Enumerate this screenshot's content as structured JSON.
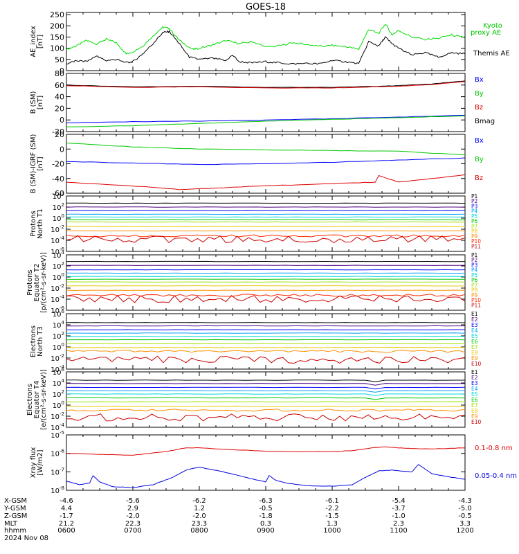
{
  "title": "GOES-18",
  "chart_data": {
    "type": "line",
    "x_tick_labels": [
      "0600",
      "0700",
      "0800",
      "0900",
      "1000",
      "1100",
      "1200"
    ],
    "x_range_hours": [
      6,
      12
    ],
    "panels": [
      {
        "id": "ae",
        "ylabel": [
          "AE_index",
          "[nT]"
        ],
        "scale": "linear",
        "ylim": [
          0,
          260
        ],
        "yticks": [
          0,
          50,
          100,
          150,
          200,
          250
        ],
        "legend": [
          {
            "lines": [
              "Kyoto",
              "proxy AE"
            ],
            "color": "#00c800"
          },
          {
            "lines": [
              "Themis AE"
            ],
            "color": "#000000"
          }
        ],
        "series": [
          {
            "name": "Kyoto proxy AE",
            "color": "#00dd00",
            "x": [
              6.0,
              6.15,
              6.3,
              6.45,
              6.6,
              6.75,
              6.9,
              7.0,
              7.15,
              7.3,
              7.45,
              7.55,
              7.7,
              7.9,
              8.0,
              8.2,
              8.4,
              8.6,
              8.8,
              9.0,
              9.2,
              9.4,
              9.6,
              9.8,
              10.0,
              10.2,
              10.4,
              10.55,
              10.7,
              10.8,
              10.9,
              11.0,
              11.2,
              11.4,
              11.6,
              11.8,
              12.0
            ],
            "y": [
              95,
              110,
              135,
              120,
              140,
              125,
              75,
              85,
              110,
              155,
              195,
              188,
              135,
              95,
              100,
              115,
              135,
              120,
              130,
              105,
              110,
              125,
              118,
              108,
              112,
              108,
              95,
              185,
              165,
              210,
              160,
              180,
              150,
              140,
              145,
              160,
              145
            ]
          },
          {
            "name": "Themis AE",
            "color": "#000000",
            "x": [
              6.0,
              6.15,
              6.3,
              6.45,
              6.6,
              6.75,
              6.9,
              7.0,
              7.15,
              7.3,
              7.45,
              7.55,
              7.7,
              7.85,
              8.0,
              8.2,
              8.4,
              8.5,
              8.6,
              8.8,
              9.0,
              9.2,
              9.4,
              9.6,
              9.8,
              10.0,
              10.2,
              10.4,
              10.55,
              10.7,
              10.8,
              10.9,
              11.0,
              11.2,
              11.4,
              11.6,
              11.8,
              12.0
            ],
            "y": [
              30,
              45,
              40,
              65,
              45,
              50,
              35,
              40,
              75,
              120,
              170,
              175,
              120,
              60,
              50,
              55,
              45,
              70,
              40,
              35,
              40,
              35,
              30,
              32,
              30,
              45,
              40,
              30,
              130,
              110,
              150,
              120,
              100,
              70,
              80,
              60,
              80,
              75
            ]
          }
        ]
      },
      {
        "id": "bsm",
        "ylabel": [
          "B (SM)",
          "[nT]"
        ],
        "scale": "linear",
        "ylim": [
          -20,
          80
        ],
        "yticks": [
          -20,
          0,
          20,
          40,
          60,
          80
        ],
        "legend": [
          {
            "lines": [
              "Bx"
            ],
            "color": "#0000ff"
          },
          {
            "lines": [
              "By"
            ],
            "color": "#00c800"
          },
          {
            "lines": [
              "Bz"
            ],
            "color": "#dd0000"
          },
          {
            "lines": [
              "Bmag"
            ],
            "color": "#000000"
          }
        ],
        "series": [
          {
            "name": "Bmag",
            "color": "#000000",
            "x": [
              6,
              7,
              8,
              9,
              10,
              10.7,
              11,
              11.5,
              12
            ],
            "y": [
              60,
              57,
              58,
              56,
              56,
              58,
              59,
              62,
              67
            ]
          },
          {
            "name": "Bz",
            "color": "#dd0000",
            "x": [
              6,
              7,
              8,
              9,
              10,
              10.7,
              11,
              11.5,
              12
            ],
            "y": [
              59,
              56,
              57,
              55,
              55,
              57,
              58,
              61,
              66
            ]
          },
          {
            "name": "Bx",
            "color": "#0000ff",
            "x": [
              6,
              7,
              8,
              9,
              10,
              11,
              12
            ],
            "y": [
              -5,
              -3,
              -2,
              0,
              2,
              5,
              8
            ]
          },
          {
            "name": "By",
            "color": "#00c800",
            "x": [
              6,
              7,
              8,
              9,
              10,
              11,
              12
            ],
            "y": [
              -12,
              -10,
              -6,
              -2,
              1,
              4,
              7
            ]
          }
        ]
      },
      {
        "id": "bsmigrf",
        "ylabel": [
          "B (SM)-IGRF (SM)",
          "[nT]"
        ],
        "scale": "linear",
        "ylim": [
          -60,
          20
        ],
        "yticks": [
          -60,
          -40,
          -20,
          0,
          20
        ],
        "legend": [
          {
            "lines": [
              "Bx"
            ],
            "color": "#0000ff"
          },
          {
            "lines": [
              "By"
            ],
            "color": "#00c800"
          },
          {
            "lines": [
              "Bz"
            ],
            "color": "#dd0000"
          }
        ],
        "series": [
          {
            "name": "By",
            "color": "#00c800",
            "x": [
              6,
              7,
              8,
              9,
              10,
              11,
              12
            ],
            "y": [
              8,
              3,
              0,
              -1,
              -2,
              -3,
              -8
            ]
          },
          {
            "name": "Bx",
            "color": "#0000ff",
            "x": [
              6,
              7,
              8,
              9,
              10,
              11,
              12
            ],
            "y": [
              -17,
              -19,
              -21,
              -20,
              -18,
              -15,
              -12
            ]
          },
          {
            "name": "Bz",
            "color": "#dd0000",
            "x": [
              6,
              7,
              7.7,
              8,
              9,
              10,
              10.65,
              10.7,
              11,
              12
            ],
            "y": [
              -45,
              -50,
              -55,
              -54,
              -50,
              -47,
              -45,
              -36,
              -45,
              -35
            ]
          }
        ]
      },
      {
        "id": "p1",
        "ylabel": [
          "Protons",
          "North T1"
        ],
        "scale": "log",
        "ylim_exp": [
          -6,
          4
        ],
        "ytick_exps": [
          -6,
          -4,
          -2,
          0,
          2,
          4
        ],
        "legend_small": [
          "P1",
          "P2",
          "P3",
          "P4",
          "P5",
          "P6",
          "P7",
          "P8",
          "P9",
          "P10",
          "P11"
        ],
        "legend_colors": [
          "#000000",
          "#4b0082",
          "#0000ff",
          "#00a0ff",
          "#00d8d8",
          "#00c800",
          "#a0e000",
          "#e8c800",
          "#ff9000",
          "#ff2800",
          "#cc0000"
        ],
        "levels_exp": [
          2.7,
          2.0,
          1.4,
          0.7,
          0.2,
          -0.3,
          -0.7,
          -1.5,
          -2.3,
          -3.2,
          -3.8
        ]
      },
      {
        "id": "p2",
        "ylabel": [
          "Protons",
          "Equator T2",
          "[p/(cm²-s-sr-keV)]"
        ],
        "scale": "log",
        "ylim_exp": [
          -6,
          4
        ],
        "ytick_exps": [
          -6,
          -4,
          -2,
          0,
          2,
          4
        ],
        "legend_small": [
          "P1",
          "P2",
          "P3",
          "P4",
          "P5",
          "P6",
          "P7",
          "P8",
          "P9",
          "P10",
          "P11"
        ],
        "legend_colors": [
          "#000000",
          "#4b0082",
          "#0000ff",
          "#00a0ff",
          "#00d8d8",
          "#00c800",
          "#a0e000",
          "#e8c800",
          "#ff9000",
          "#ff2800",
          "#cc0000"
        ],
        "levels_exp": [
          2.8,
          2.1,
          1.3,
          0.7,
          0.1,
          -0.4,
          -0.9,
          -1.6,
          -2.4,
          -3.3,
          -4.0
        ]
      },
      {
        "id": "e1",
        "ylabel": [
          "Electrons",
          "North T3"
        ],
        "scale": "log",
        "ylim_exp": [
          -4,
          6
        ],
        "ytick_exps": [
          -4,
          -2,
          0,
          2,
          4,
          6
        ],
        "legend_small": [
          "E1",
          "E2",
          "E3",
          "E4",
          "E5",
          "E6",
          "E7",
          "E8",
          "E9",
          "E10"
        ],
        "legend_colors": [
          "#000000",
          "#4b0082",
          "#0000ff",
          "#00a0ff",
          "#00d8d8",
          "#00c800",
          "#a0e000",
          "#e8c800",
          "#ff9000",
          "#cc0000"
        ],
        "levels_exp": [
          4.4,
          3.8,
          3.1,
          2.5,
          1.9,
          1.3,
          0.6,
          -0.1,
          -0.8,
          -2.3
        ]
      },
      {
        "id": "e2",
        "ylabel": [
          "Electrons",
          "Equator T4",
          "[e/(cm²-s-sr-keV)]"
        ],
        "scale": "log",
        "ylim_exp": [
          -4,
          6
        ],
        "ytick_exps": [
          -4,
          -2,
          0,
          2,
          4,
          6
        ],
        "legend_small": [
          "E1",
          "E2",
          "E3",
          "E4",
          "E5",
          "E6",
          "E7",
          "E8",
          "E9",
          "E10"
        ],
        "legend_colors": [
          "#000000",
          "#4b0082",
          "#0000ff",
          "#00a0ff",
          "#00d8d8",
          "#00c800",
          "#a0e000",
          "#e8c800",
          "#ff9000",
          "#cc0000"
        ],
        "levels_exp": [
          4.5,
          3.9,
          3.2,
          2.6,
          2.0,
          1.3,
          0.6,
          -0.2,
          -0.9,
          -2.2
        ]
      },
      {
        "id": "xray",
        "ylabel": [
          "Xray flux",
          "[W/m2]"
        ],
        "scale": "log",
        "ylim_exp": [
          -8,
          -5
        ],
        "ytick_exps": [
          -8,
          -7,
          -6,
          -5
        ],
        "legend": [
          {
            "lines": [
              "0.1-0.8 nm"
            ],
            "color": "#dd0000"
          },
          {
            "lines": [
              "0.05-0.4 nm"
            ],
            "color": "#0000dd"
          }
        ],
        "series": [
          {
            "name": "0.1-0.8 nm",
            "color": "#dd0000",
            "x": [
              6.0,
              6.5,
              7.0,
              7.5,
              7.8,
              8.0,
              8.5,
              9.0,
              9.5,
              10.0,
              10.3,
              10.6,
              10.8,
              11.0,
              11.3,
              11.6,
              12.0
            ],
            "y": [
              -6.0,
              -6.05,
              -6.1,
              -5.9,
              -5.7,
              -5.7,
              -5.8,
              -5.88,
              -5.92,
              -5.9,
              -5.85,
              -5.7,
              -5.65,
              -5.7,
              -5.75,
              -5.75,
              -5.7
            ]
          },
          {
            "name": "0.05-0.4 nm",
            "color": "#0000dd",
            "x": [
              6.0,
              6.2,
              6.35,
              6.4,
              6.5,
              6.7,
              7.0,
              7.3,
              7.6,
              7.8,
              8.0,
              8.3,
              8.7,
              9.0,
              9.05,
              9.15,
              9.3,
              9.6,
              10.0,
              10.3,
              10.5,
              10.7,
              10.9,
              11.0,
              11.2,
              11.3,
              11.5,
              11.8,
              12.0
            ],
            "y": [
              -7.5,
              -7.7,
              -7.6,
              -7.2,
              -7.55,
              -7.8,
              -7.85,
              -7.7,
              -7.3,
              -6.9,
              -6.75,
              -6.95,
              -7.3,
              -7.55,
              -7.2,
              -7.45,
              -7.6,
              -7.75,
              -7.78,
              -7.7,
              -7.3,
              -6.95,
              -6.9,
              -6.95,
              -7.0,
              -6.6,
              -7.1,
              -7.3,
              -7.4
            ]
          }
        ]
      }
    ]
  },
  "ephemeris": {
    "row_labels": [
      "X-GSM",
      "Y-GSM",
      "Z-GSM",
      "MLT",
      "hhmm",
      "2024 Nov 08"
    ],
    "columns": [
      {
        "x": "-4.6",
        "y": "4.4",
        "z": "-1.7",
        "mlt": "21.2",
        "hhmm": "0600"
      },
      {
        "x": "-5.6",
        "y": "2.9",
        "z": "-2.0",
        "mlt": "22.3",
        "hhmm": "0700"
      },
      {
        "x": "-6.2",
        "y": "1.2",
        "z": "-2.0",
        "mlt": "23.3",
        "hhmm": "0800"
      },
      {
        "x": "-6.3",
        "y": "-0.5",
        "z": "-1.8",
        "mlt": "0.3",
        "hhmm": "0900"
      },
      {
        "x": "-6.1",
        "y": "-2.2",
        "z": "-1.5",
        "mlt": "1.3",
        "hhmm": "1000"
      },
      {
        "x": "-5.4",
        "y": "-3.7",
        "z": "-1.0",
        "mlt": "2.3",
        "hhmm": "1100"
      },
      {
        "x": "-4.3",
        "y": "-5.0",
        "z": "-0.5",
        "mlt": "3.3",
        "hhmm": "1200"
      }
    ]
  }
}
